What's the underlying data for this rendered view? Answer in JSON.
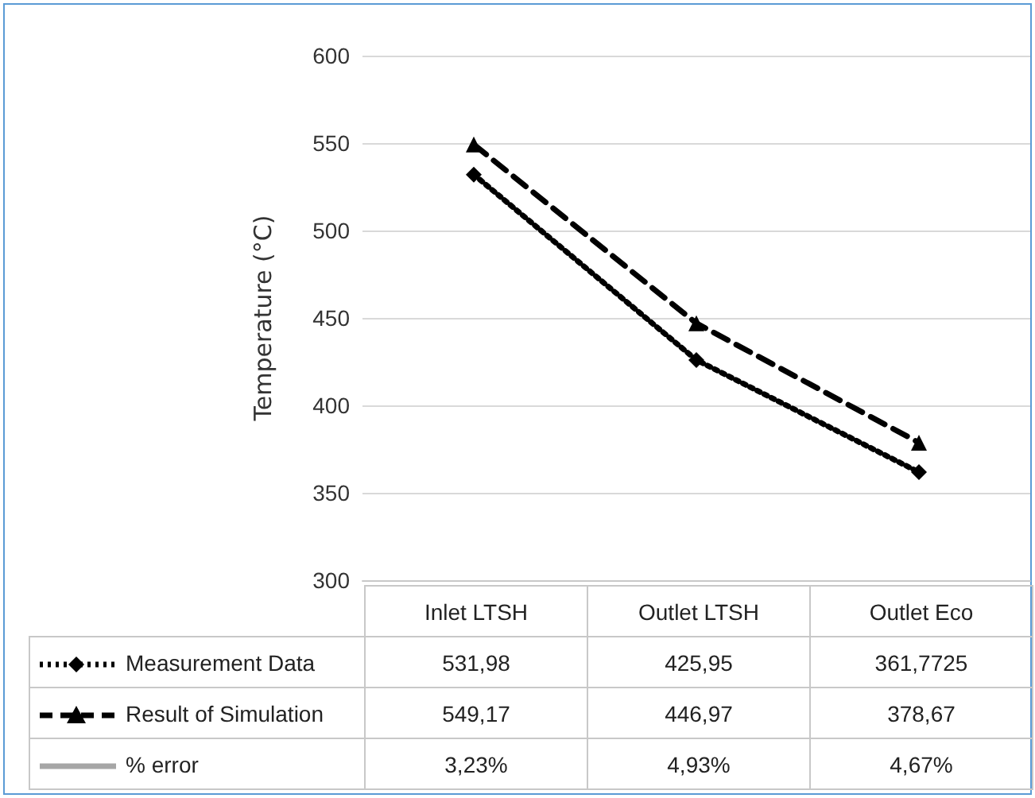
{
  "chart_data": {
    "type": "line",
    "ylabel": "Temperature (°C)",
    "categories": [
      "Inlet LTSH",
      "Outlet LTSH",
      "Outlet Eco"
    ],
    "series": [
      {
        "name": "Measurement Data",
        "color": "#000000",
        "marker": "diamond",
        "line_style": "dotted",
        "values": [
          531.98,
          425.95,
          361.7725
        ],
        "value_labels": [
          "531,98",
          "425,95",
          "361,7725"
        ]
      },
      {
        "name": "Result of Simulation",
        "color": "#000000",
        "marker": "triangle",
        "line_style": "dashed",
        "values": [
          549.17,
          446.97,
          378.67
        ],
        "value_labels": [
          "549,17",
          "446,97",
          "378,67"
        ]
      },
      {
        "name": "% error",
        "color": "#a6a6a6",
        "line_style": "solid",
        "values": [
          null,
          null,
          null
        ],
        "value_labels": [
          "3,23%",
          "4,93%",
          "4,67%"
        ]
      }
    ],
    "ylim": [
      300,
      600
    ],
    "yticks": [
      300,
      350,
      400,
      450,
      500,
      550,
      600
    ],
    "grid": "y",
    "legend": "bottom"
  }
}
